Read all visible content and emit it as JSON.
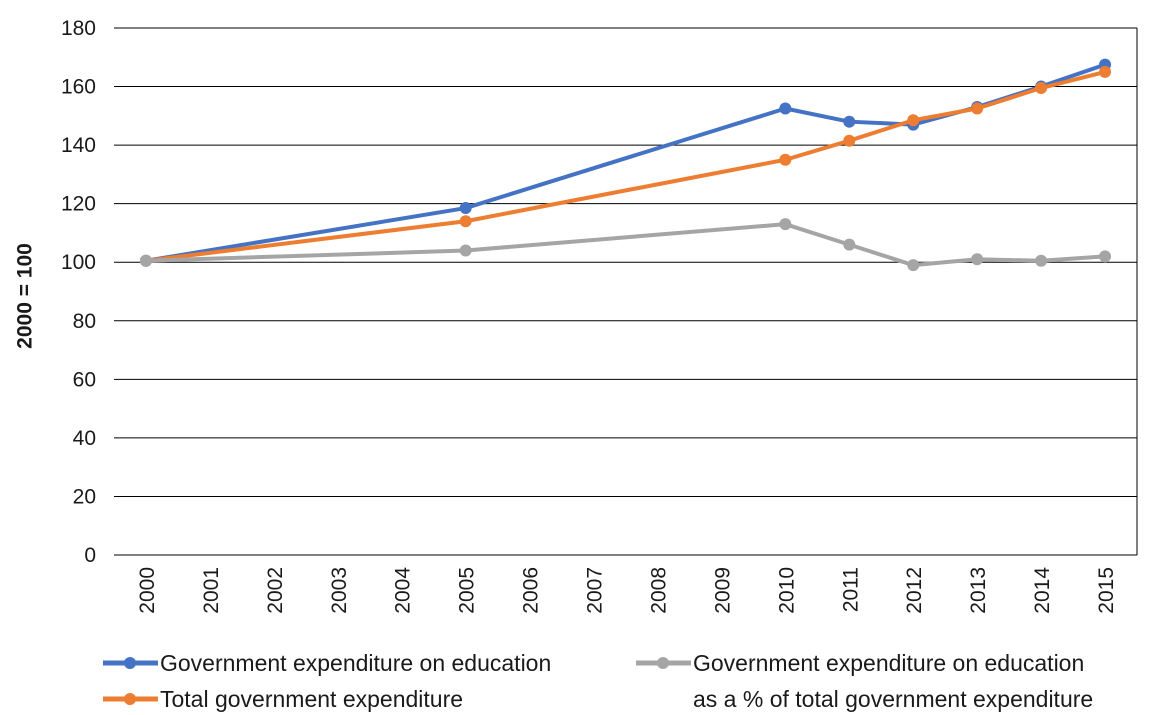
{
  "chart_data": {
    "type": "line",
    "ylabel": "2000 = 100",
    "xlabel": "",
    "ylim": [
      0,
      180
    ],
    "ytick_step": 20,
    "grid": true,
    "legend_position": "bottom",
    "categories": [
      "2000",
      "2001",
      "2002",
      "2003",
      "2004",
      "2005",
      "2006",
      "2007",
      "2008",
      "2009",
      "2010",
      "2011",
      "2012",
      "2013",
      "2014",
      "2015"
    ],
    "series": [
      {
        "name": "Government expenditure on education",
        "color": "#4472c4",
        "points": [
          {
            "x": "2000",
            "y": 100.5
          },
          {
            "x": "2005",
            "y": 118.5
          },
          {
            "x": "2010",
            "y": 152.5
          },
          {
            "x": "2011",
            "y": 148
          },
          {
            "x": "2012",
            "y": 147
          },
          {
            "x": "2013",
            "y": 153
          },
          {
            "x": "2014",
            "y": 160
          },
          {
            "x": "2015",
            "y": 167.5
          }
        ]
      },
      {
        "name": "Total government expenditure",
        "color": "#ed7d31",
        "points": [
          {
            "x": "2000",
            "y": 100.5
          },
          {
            "x": "2005",
            "y": 114
          },
          {
            "x": "2010",
            "y": 135
          },
          {
            "x": "2011",
            "y": 141.5
          },
          {
            "x": "2012",
            "y": 148.5
          },
          {
            "x": "2013",
            "y": 152.5
          },
          {
            "x": "2014",
            "y": 159.5
          },
          {
            "x": "2015",
            "y": 165
          }
        ]
      },
      {
        "name": "Government expenditure on education as a % of total government expenditure",
        "color": "#a5a5a5",
        "points": [
          {
            "x": "2000",
            "y": 100.5
          },
          {
            "x": "2005",
            "y": 104
          },
          {
            "x": "2010",
            "y": 113
          },
          {
            "x": "2011",
            "y": 106
          },
          {
            "x": "2012",
            "y": 99
          },
          {
            "x": "2013",
            "y": 101
          },
          {
            "x": "2014",
            "y": 100.5
          },
          {
            "x": "2015",
            "y": 102
          }
        ]
      }
    ]
  },
  "legend": {
    "item1": "Government expenditure on education",
    "item2": "Total government expenditure",
    "item3_line1": "Government expenditure on education",
    "item3_line2": "as a % of total government expenditure"
  }
}
